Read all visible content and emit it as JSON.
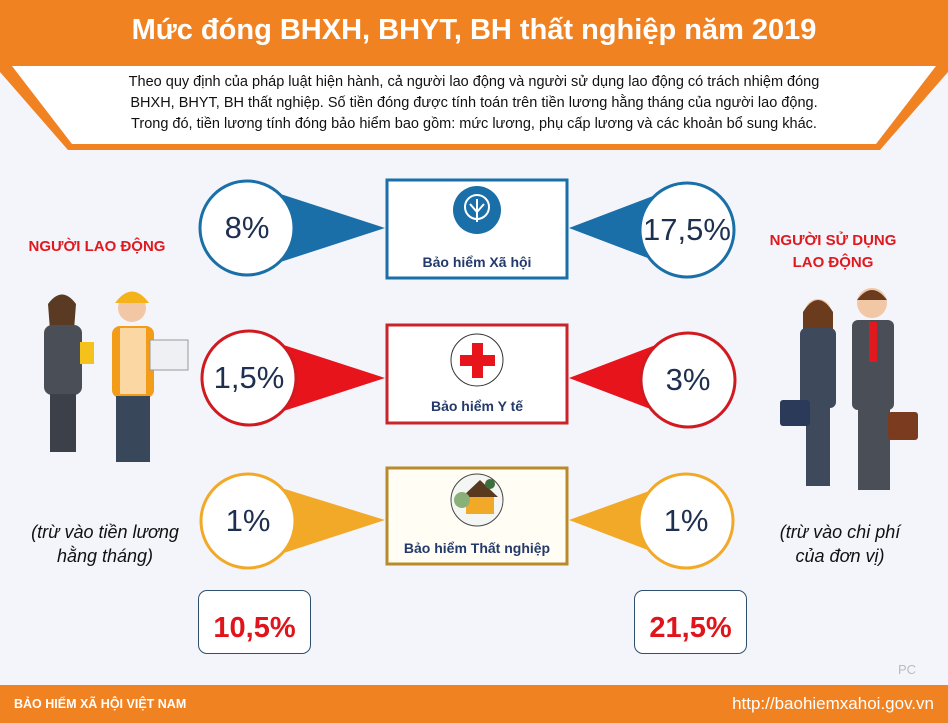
{
  "header": {
    "title": "Mức đóng BHXH, BHYT, BH thất nghiệp năm 2019"
  },
  "intro": {
    "lines": [
      "Theo quy định của pháp luật hiện hành, cả người lao động và người sử dụng lao động có trách nhiệm đóng",
      "BHXH, BHYT, BH thất nghiệp. Số tiền đóng được tính toán trên tiền lương hằng tháng của người lao động.",
      "Trong đó, tiền lương tính đóng bảo hiểm bao gồm: mức lương, phụ cấp lương và các khoản bổ sung khác."
    ]
  },
  "employee": {
    "label": "NGƯỜI LAO ĐỘNG",
    "caption_lines": [
      "(trừ vào tiền lương",
      "hằng tháng)"
    ],
    "total": "10,5%"
  },
  "employer": {
    "label_lines": [
      "NGƯỜI SỬ DỤNG",
      "LAO ĐỘNG"
    ],
    "caption_lines": [
      "(trừ vào chi phí",
      "của đơn vị)"
    ],
    "total": "21,5%"
  },
  "rows": [
    {
      "label": "Bảo hiểm Xã hội",
      "employee": "8%",
      "employer": "17,5%",
      "color": "#1a6fa8",
      "icon": "bhxh-logo-icon"
    },
    {
      "label": "Bảo hiểm Y tế",
      "employee": "1,5%",
      "employer": "3%",
      "color": "#e8141b",
      "icon": "red-cross-icon"
    },
    {
      "label": "Bảo hiểm Thất nghiệp",
      "employee": "1%",
      "employer": "1%",
      "color": "#f2a928",
      "icon": "house-icon"
    }
  ],
  "watermark": "PC",
  "footer": {
    "org": "BẢO HIỂM XÃ HỘI VIỆT NAM",
    "url": "http://baohiemxahoi.gov.vn"
  },
  "colors": {
    "brand_orange": "#f18221",
    "accent_red": "#e0141a",
    "text_navy": "#243a6b"
  }
}
